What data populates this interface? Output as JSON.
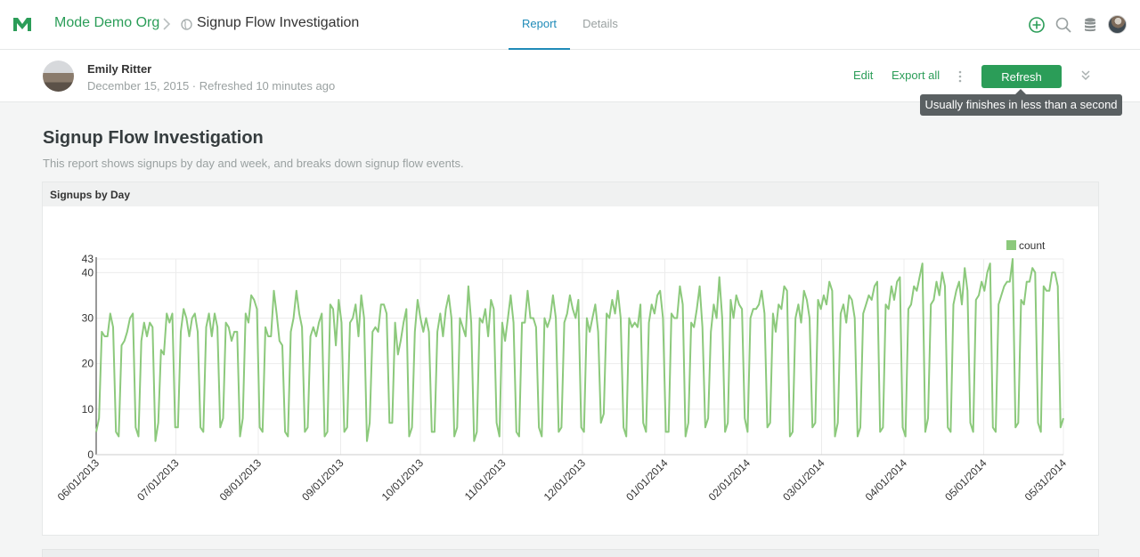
{
  "nav": {
    "org_name": "Mode Demo Org",
    "report_title": "Signup Flow Investigation",
    "tabs": [
      {
        "label": "Report",
        "active": true
      },
      {
        "label": "Details",
        "active": false
      }
    ],
    "icons": [
      "mode-logo-icon",
      "add-icon",
      "search-icon",
      "database-icon",
      "user-avatar"
    ],
    "accent_color": "#2b9d58",
    "tab_color": "#1f8bb8"
  },
  "author": {
    "name": "Emily Ritter",
    "meta": "December 15, 2015 · Refreshed 10 minutes ago"
  },
  "actions": {
    "edit_label": "Edit",
    "export_label": "Export all",
    "refresh_label": "Refresh",
    "refresh_tooltip": "Usually finishes in less than a second"
  },
  "report": {
    "heading": "Signup Flow Investigation",
    "description": "This report shows signups by day and week, and breaks down signup flow events."
  },
  "chart_card": {
    "title": "Signups by Day"
  },
  "chart_data": {
    "type": "line",
    "title": "",
    "xlabel": "",
    "ylabel": "",
    "legend": [
      "count"
    ],
    "legend_position": "top-right",
    "color": "#8cc97c",
    "grid": true,
    "x_start": "2013-06-01",
    "x_end": "2014-05-31",
    "ylim": [
      0,
      43
    ],
    "y_ticks": [
      0,
      10,
      20,
      30,
      40,
      43
    ],
    "x_ticks": [
      "06/01/2013",
      "07/01/2013",
      "08/01/2013",
      "09/01/2013",
      "10/01/2013",
      "11/01/2013",
      "12/01/2013",
      "01/01/2014",
      "02/01/2014",
      "03/01/2014",
      "04/01/2014",
      "05/01/2014",
      "05/31/2014"
    ],
    "series": [
      {
        "name": "count",
        "values": [
          5,
          8,
          27,
          26,
          26,
          31,
          28,
          5,
          4,
          24,
          25,
          27,
          30,
          31,
          6,
          4,
          25,
          29,
          26,
          29,
          28,
          3,
          7,
          23,
          22,
          31,
          29,
          31,
          6,
          6,
          27,
          32,
          30,
          26,
          30,
          31,
          27,
          6,
          5,
          28,
          31,
          26,
          31,
          28,
          6,
          8,
          29,
          28,
          25,
          27,
          27,
          4,
          8,
          31,
          29,
          35,
          34,
          32,
          6,
          5,
          28,
          26,
          26,
          36,
          31,
          25,
          24,
          5,
          4,
          27,
          30,
          36,
          31,
          28,
          5,
          6,
          26,
          28,
          26,
          29,
          31,
          4,
          5,
          33,
          32,
          24,
          34,
          29,
          5,
          6,
          29,
          30,
          33,
          26,
          35,
          30,
          3,
          7,
          27,
          28,
          27,
          33,
          33,
          31,
          7,
          7,
          29,
          22,
          25,
          29,
          32,
          4,
          6,
          27,
          34,
          30,
          27,
          30,
          27,
          5,
          5,
          27,
          31,
          26,
          32,
          35,
          30,
          4,
          6,
          30,
          28,
          26,
          37,
          29,
          3,
          5,
          30,
          29,
          32,
          26,
          34,
          32,
          7,
          4,
          29,
          25,
          30,
          35,
          29,
          5,
          4,
          29,
          29,
          36,
          30,
          30,
          28,
          6,
          4,
          30,
          28,
          30,
          35,
          30,
          5,
          6,
          29,
          31,
          35,
          32,
          30,
          34,
          6,
          5,
          30,
          27,
          30,
          33,
          27,
          7,
          9,
          31,
          30,
          34,
          31,
          36,
          30,
          6,
          4,
          30,
          28,
          29,
          28,
          33,
          7,
          5,
          29,
          33,
          31,
          35,
          36,
          30,
          5,
          5,
          31,
          30,
          30,
          37,
          33,
          4,
          7,
          29,
          28,
          32,
          37,
          28,
          6,
          8,
          27,
          33,
          30,
          39,
          30,
          5,
          7,
          34,
          30,
          35,
          33,
          32,
          8,
          5,
          30,
          32,
          32,
          33,
          36,
          31,
          6,
          7,
          31,
          27,
          33,
          32,
          37,
          36,
          4,
          5,
          30,
          33,
          29,
          36,
          34,
          30,
          6,
          7,
          34,
          32,
          35,
          33,
          38,
          36,
          4,
          7,
          31,
          33,
          29,
          35,
          34,
          30,
          4,
          6,
          31,
          33,
          35,
          34,
          37,
          38,
          5,
          6,
          33,
          32,
          37,
          34,
          38,
          39,
          6,
          4,
          32,
          33,
          37,
          36,
          39,
          42,
          5,
          8,
          33,
          34,
          38,
          35,
          40,
          37,
          6,
          5,
          33,
          36,
          38,
          33,
          41,
          36,
          7,
          5,
          34,
          35,
          38,
          36,
          40,
          42,
          6,
          5,
          33,
          35,
          37,
          38,
          38,
          43,
          6,
          7,
          34,
          33,
          38,
          38,
          41,
          40,
          7,
          5,
          37,
          36,
          36,
          40,
          40,
          37,
          6,
          8
        ]
      }
    ]
  }
}
